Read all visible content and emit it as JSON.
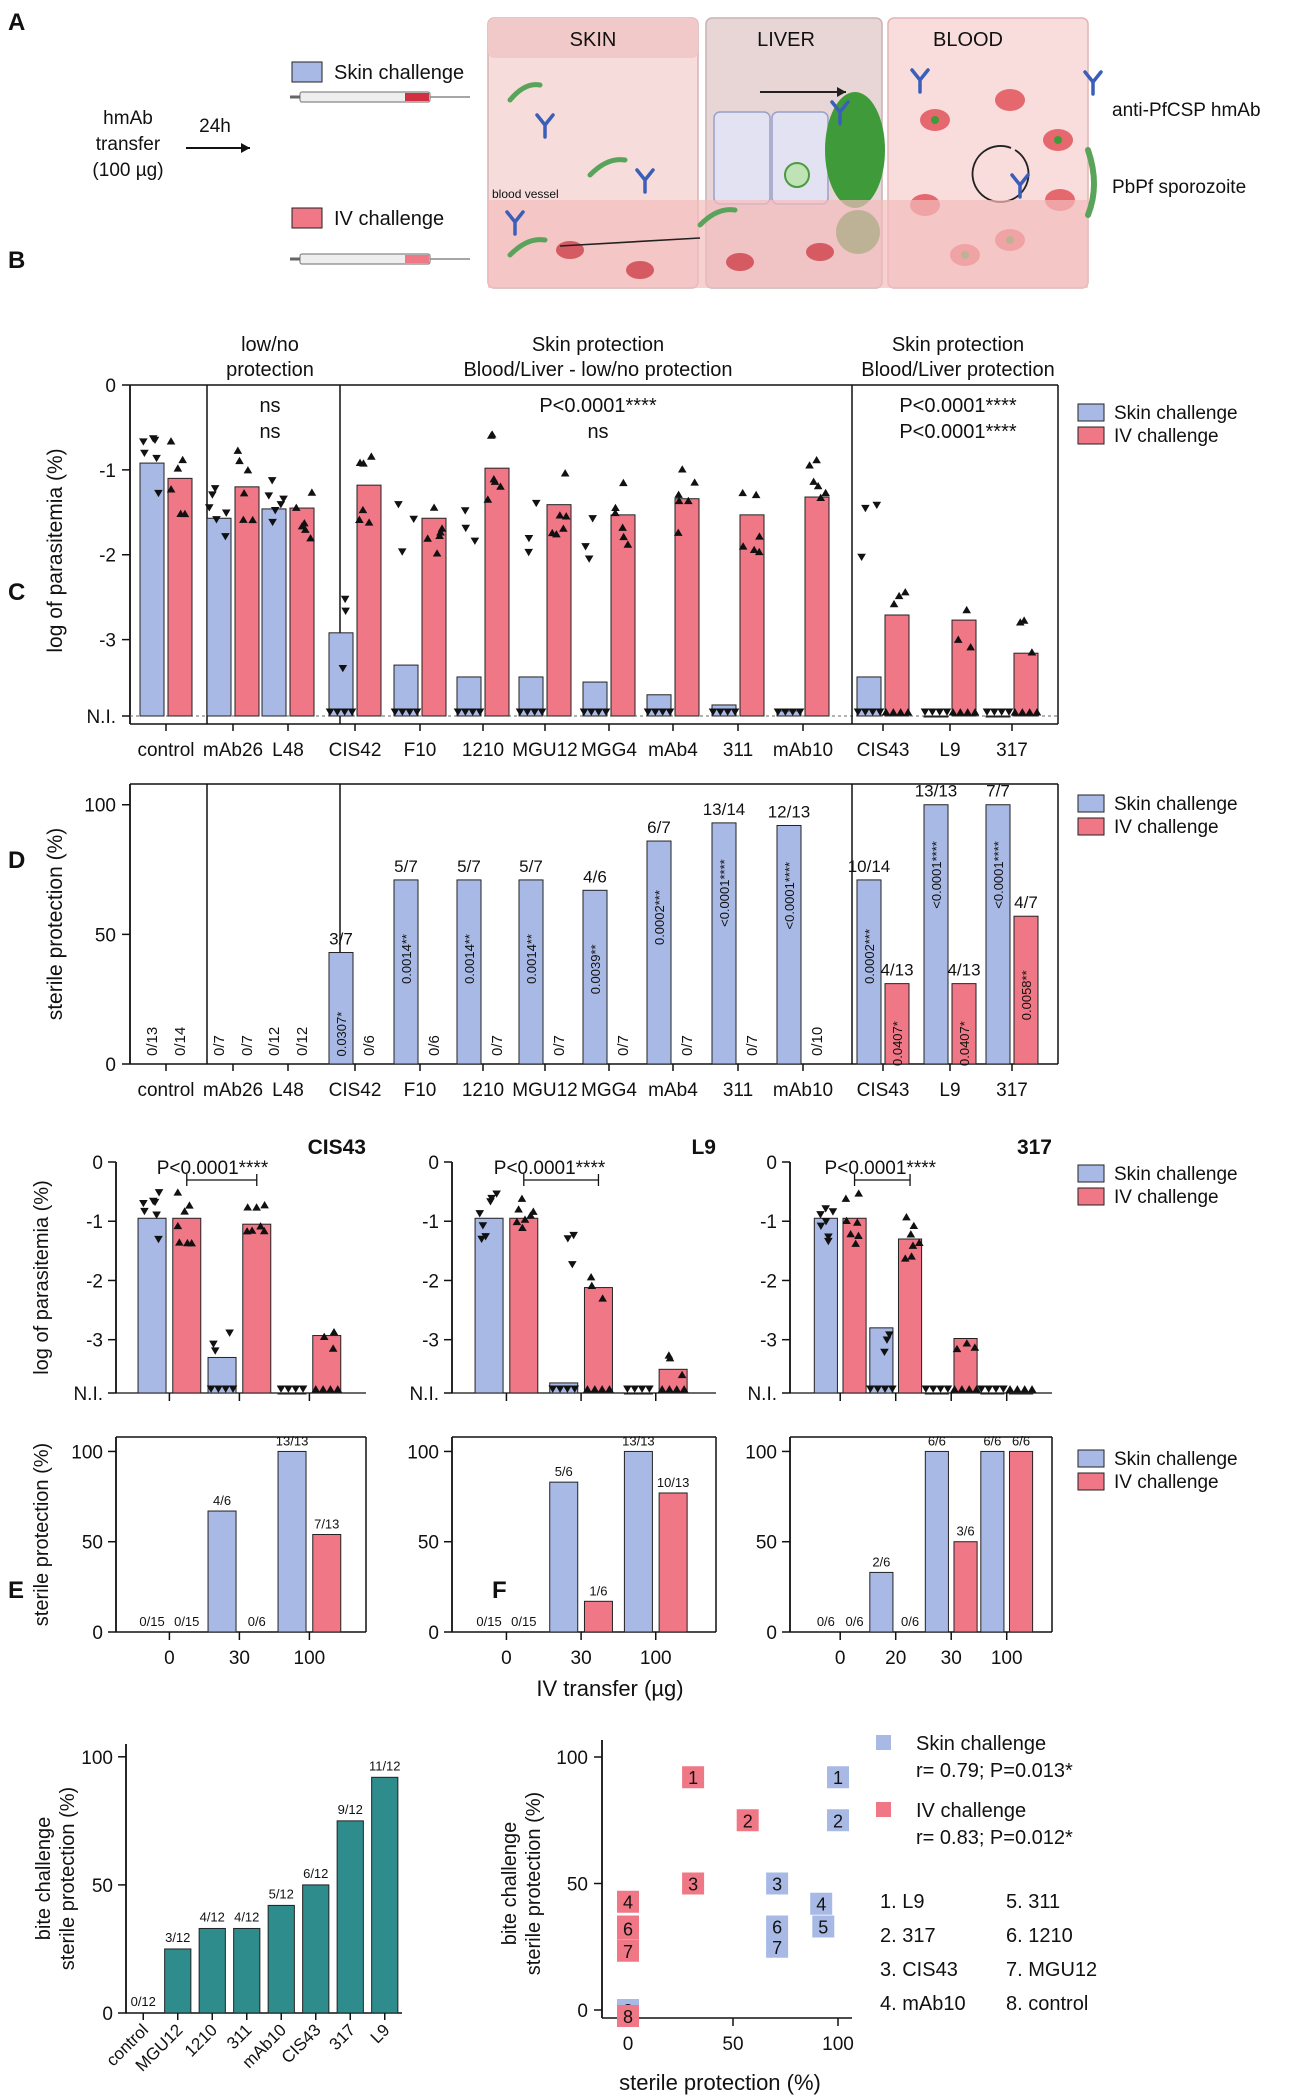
{
  "colors": {
    "skin": "#a9b9e6",
    "iv": "#f07786",
    "teal": "#2e8c8c",
    "stat_blue": "#4d6fd1",
    "stat_red": "#e0303f"
  },
  "panel_letters": [
    "A",
    "B",
    "C",
    "D",
    "E",
    "F"
  ],
  "schematic": {
    "transfer_lines": [
      "hmAb",
      "transfer",
      "(100 µg)"
    ],
    "time_label": "24h",
    "skin_challenge": "Skin challenge",
    "iv_challenge": "IV challenge",
    "skin_title": "SKIN",
    "liver_title": "LIVER",
    "blood_title": "BLOOD",
    "blood_vessel": "blood vessel",
    "legend_antibody": "anti-PfCSP hmAb",
    "legend_sporozoite": "PbPf sporozoite"
  },
  "chart_data": [
    {
      "id": "B",
      "type": "bar",
      "ylabel": "log of parasitemia  (%)",
      "ylim": [
        -3.9,
        0
      ],
      "yticks": [
        "0",
        "-1",
        "-2",
        "-3",
        "N.I."
      ],
      "categories": [
        "control",
        "mAb26",
        "L48",
        "CIS42",
        "F10",
        "1210",
        "MGU12",
        "MGG4",
        "mAb4",
        "311",
        "mAb10",
        "CIS43",
        "L9",
        "317"
      ],
      "groups": [
        {
          "title": [
            "low/no",
            "protection"
          ],
          "stat_skin": "ns",
          "stat_iv": "ns"
        },
        {
          "title": [
            "Skin protection",
            "Blood/Liver - low/no protection"
          ],
          "stat_skin": "P<0.0001****",
          "stat_iv": "ns"
        },
        {
          "title": [
            "Skin protection",
            "Blood/Liver protection"
          ],
          "stat_skin": "P<0.0001****",
          "stat_iv": "P<0.0001****"
        }
      ],
      "series": [
        {
          "name": "Skin challenge",
          "values": [
            -0.92,
            -1.57,
            -1.46,
            -2.92,
            -3.3,
            -3.44,
            -3.44,
            -3.5,
            -3.65,
            -3.77,
            -3.84,
            -3.44,
            -3.9,
            -3.9
          ]
        },
        {
          "name": "IV challenge",
          "values": [
            -1.1,
            -1.2,
            -1.45,
            -1.18,
            -1.57,
            -0.98,
            -1.41,
            -1.53,
            -1.34,
            -1.53,
            -1.32,
            -2.71,
            -2.77,
            -3.16
          ]
        }
      ],
      "legend": [
        "Skin challenge",
        "IV challenge"
      ]
    },
    {
      "id": "C",
      "type": "bar",
      "ylabel": "sterile protection  (%)",
      "ylim": [
        0,
        108
      ],
      "yticks": [
        "0",
        "50",
        "100"
      ],
      "categories": [
        "control",
        "mAb26",
        "L48",
        "CIS42",
        "F10",
        "1210",
        "MGU12",
        "MGG4",
        "mAb4",
        "311",
        "mAb10",
        "CIS43",
        "L9",
        "317"
      ],
      "series": [
        {
          "name": "Skin challenge",
          "values": [
            0,
            0,
            0,
            43,
            71,
            71,
            71,
            67,
            86,
            93,
            92,
            71,
            100,
            100
          ],
          "labels": [
            "0/13",
            "0/7",
            "0/12",
            "3/7",
            "5/7",
            "5/7",
            "5/7",
            "4/6",
            "6/7",
            "13/14",
            "12/13",
            "10/14",
            "13/13",
            "7/7"
          ],
          "pvals": [
            "",
            "",
            "",
            "0.0307*",
            "0.0014**",
            "0.0014**",
            "0.0014**",
            "0.0039**",
            "0.0002***",
            "<0.0001****",
            "<0.0001****",
            "0.0002***",
            "<0.0001****",
            "<0.0001****"
          ]
        },
        {
          "name": "IV challenge",
          "values": [
            0,
            0,
            0,
            0,
            0,
            0,
            0,
            0,
            0,
            0,
            0,
            31,
            31,
            57
          ],
          "labels": [
            "0/14",
            "0/7",
            "0/12",
            "0/6",
            "0/6",
            "0/7",
            "0/7",
            "0/7",
            "0/7",
            "0/7",
            "0/10",
            "4/13",
            "4/13",
            "4/7"
          ],
          "pvals": [
            "",
            "",
            "",
            "",
            "",
            "",
            "",
            "",
            "",
            "",
            "",
            "0.0407*",
            "0.0407*",
            "0.0058**"
          ]
        }
      ],
      "legend": [
        "Skin challenge",
        "IV challenge"
      ]
    },
    {
      "id": "D",
      "type": "bar",
      "ylabel_top": "log of parasitemia (%)",
      "ylabel_bottom": "sterile protection (%)",
      "xlabel": "IV transfer (µg)",
      "top_yticks": [
        "0",
        "-1",
        "-2",
        "-3",
        "N.I."
      ],
      "bottom_yticks": [
        "0",
        "50",
        "100"
      ],
      "legend": [
        "Skin challenge",
        "IV challenge"
      ],
      "panels": [
        {
          "title": "CIS43",
          "pval": "P<0.0001****",
          "doses": [
            "0",
            "30",
            "100"
          ],
          "skin_log": [
            -0.95,
            -3.3,
            -3.9
          ],
          "iv_log": [
            -0.95,
            -1.05,
            -2.93
          ],
          "skin_prot": [
            0,
            67,
            100
          ],
          "iv_prot": [
            0,
            0,
            54
          ],
          "skin_labels": [
            "0/15",
            "4/6",
            "13/13"
          ],
          "iv_labels": [
            "0/15",
            "0/6",
            "7/13"
          ]
        },
        {
          "title": "L9",
          "pval": "P<0.0001****",
          "doses": [
            "0",
            "30",
            "100"
          ],
          "skin_log": [
            -0.95,
            -3.73,
            -3.9
          ],
          "iv_log": [
            -0.95,
            -2.12,
            -3.5
          ],
          "skin_prot": [
            0,
            83,
            100
          ],
          "iv_prot": [
            0,
            17,
            77
          ],
          "skin_labels": [
            "0/15",
            "5/6",
            "13/13"
          ],
          "iv_labels": [
            "0/15",
            "1/6",
            "10/13"
          ]
        },
        {
          "title": "317",
          "pval": "P<0.0001****",
          "doses": [
            "0",
            "20",
            "30",
            "100"
          ],
          "skin_log": [
            -0.95,
            -2.8,
            -3.9,
            -3.9
          ],
          "iv_log": [
            -0.95,
            -1.3,
            -2.98,
            -3.9
          ],
          "skin_prot": [
            0,
            33,
            100,
            100
          ],
          "iv_prot": [
            0,
            0,
            50,
            100
          ],
          "skin_labels": [
            "0/6",
            "2/6",
            "6/6",
            "6/6"
          ],
          "iv_labels": [
            "0/6",
            "0/6",
            "3/6",
            "6/6"
          ]
        }
      ]
    },
    {
      "id": "E",
      "type": "bar",
      "ylabel": [
        "bite challenge",
        "sterile protection (%)"
      ],
      "ylim": [
        0,
        105
      ],
      "yticks": [
        "0",
        "50",
        "100"
      ],
      "categories": [
        "control",
        "MGU12",
        "1210",
        "311",
        "mAb10",
        "CIS43",
        "317",
        "L9"
      ],
      "values": [
        0,
        25,
        33,
        33,
        42,
        50,
        75,
        92
      ],
      "labels": [
        "0/12",
        "3/12",
        "4/12",
        "4/12",
        "5/12",
        "6/12",
        "9/12",
        "11/12"
      ]
    },
    {
      "id": "F",
      "type": "scatter",
      "xlabel": "sterile protection (%)",
      "ylabel": [
        "bite challenge",
        "sterile protection (%)"
      ],
      "xlim": [
        0,
        100
      ],
      "ylim": [
        0,
        100
      ],
      "xticks": [
        "0",
        "50",
        "100"
      ],
      "yticks": [
        "0",
        "50",
        "100"
      ],
      "series": [
        {
          "name": "Skin challenge",
          "stat": "r= 0.79; P=0.013*",
          "points": [
            {
              "n": "1",
              "x": 100,
              "y": 92
            },
            {
              "n": "2",
              "x": 100,
              "y": 75
            },
            {
              "n": "3",
              "x": 71,
              "y": 50
            },
            {
              "n": "4",
              "x": 92,
              "y": 42
            },
            {
              "n": "5",
              "x": 93,
              "y": 33
            },
            {
              "n": "6",
              "x": 71,
              "y": 33
            },
            {
              "n": "7",
              "x": 71,
              "y": 25
            },
            {
              "n": "8",
              "x": 0,
              "y": 0
            }
          ]
        },
        {
          "name": "IV challenge",
          "stat": "r= 0.83; P=0.012*",
          "points": [
            {
              "n": "1",
              "x": 31,
              "y": 92
            },
            {
              "n": "2",
              "x": 57,
              "y": 75
            },
            {
              "n": "3",
              "x": 31,
              "y": 50
            },
            {
              "n": "4",
              "x": 0,
              "y": 42
            },
            {
              "n": "5",
              "x": 0,
              "y": 33
            },
            {
              "n": "6",
              "x": 0,
              "y": 33
            },
            {
              "n": "7",
              "x": 0,
              "y": 25
            },
            {
              "n": "8",
              "x": 0,
              "y": 0
            }
          ]
        }
      ],
      "key": [
        "1. L9",
        "2. 317",
        "3. CIS43",
        "4. mAb10",
        "5. 311",
        "6. 1210",
        "7. MGU12",
        "8. control"
      ]
    }
  ]
}
